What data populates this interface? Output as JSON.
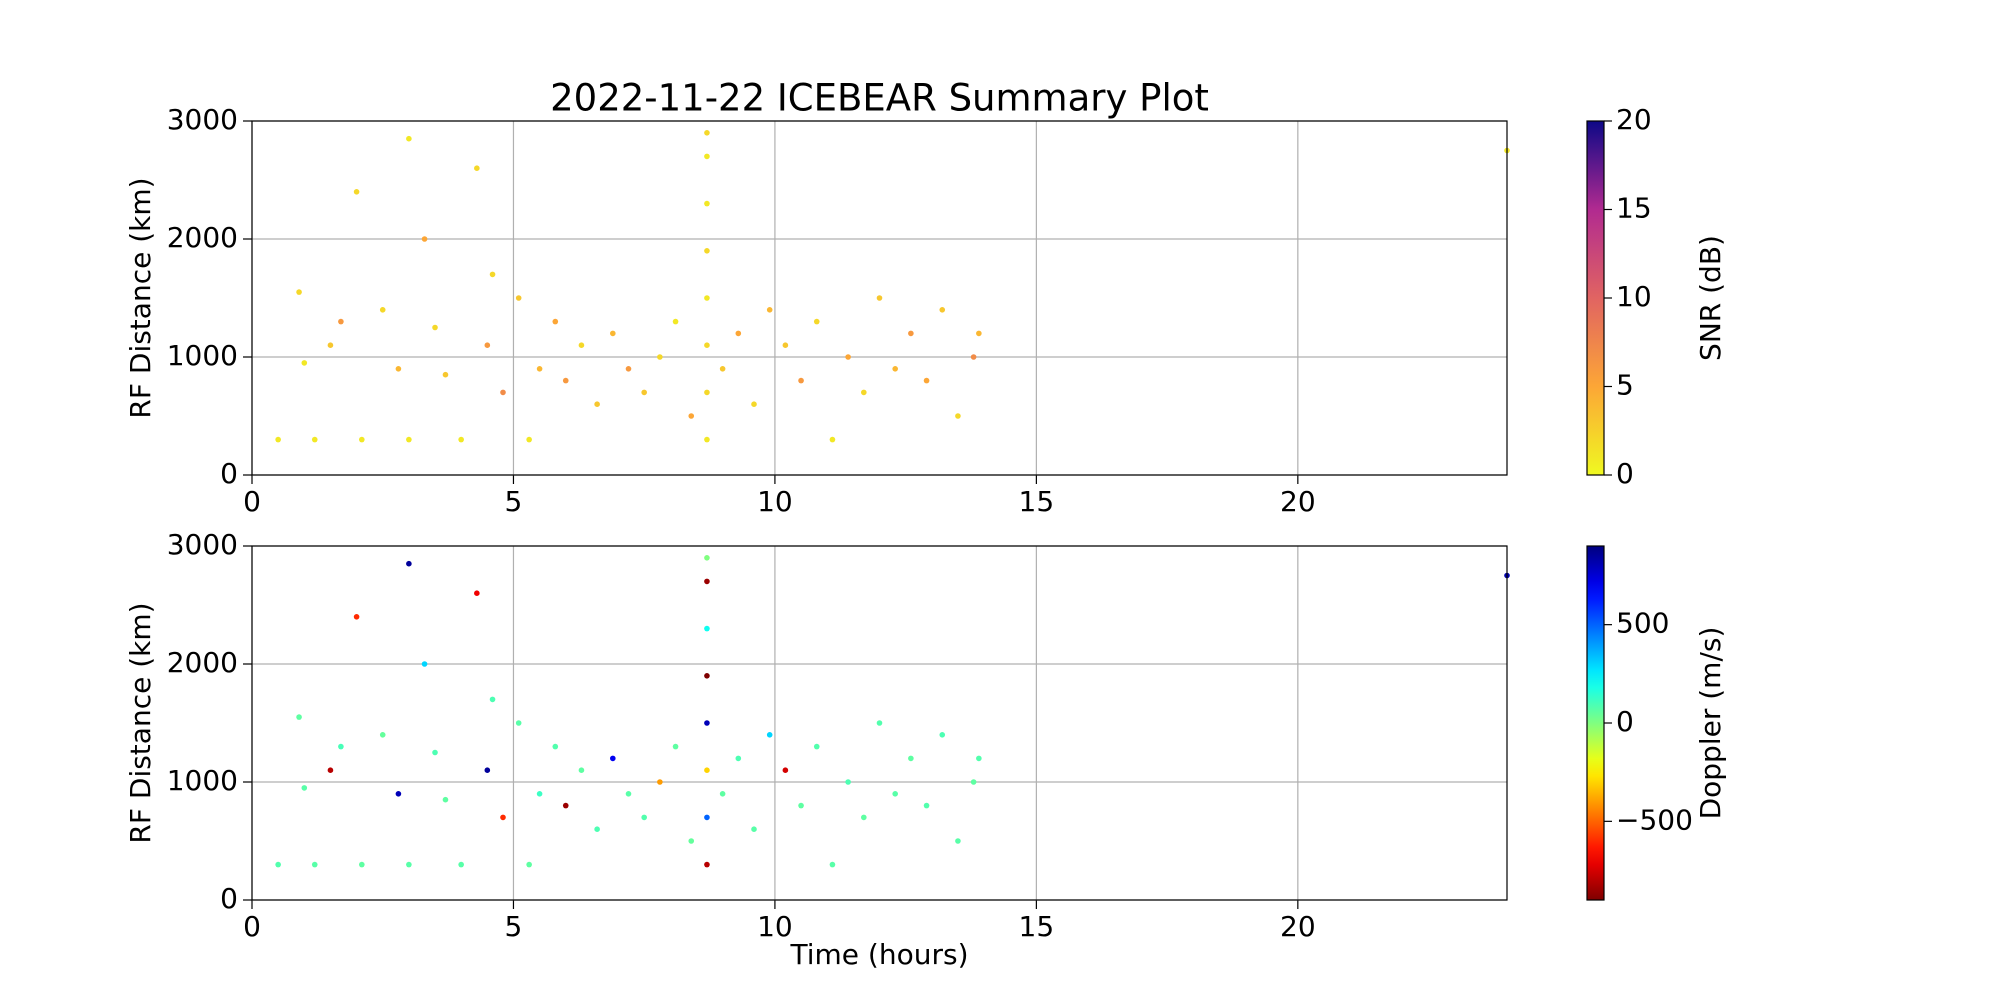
{
  "chart_data": [
    {
      "type": "scatter",
      "title": "2022-11-22 ICEBEAR Summary Plot",
      "ylabel": "RF Distance (km)",
      "xlim": [
        0,
        24
      ],
      "xticks": [
        0,
        5,
        10,
        15,
        20
      ],
      "ylim": [
        0,
        3000
      ],
      "yticks": [
        0,
        1000,
        2000,
        3000
      ],
      "grid": true,
      "x": [
        0.5,
        0.9,
        1.2,
        1.5,
        1.7,
        2.1,
        2.5,
        2.8,
        3.0,
        3.3,
        3.5,
        3.7,
        4.0,
        4.3,
        4.5,
        4.6,
        4.8,
        5.1,
        5.3,
        5.5,
        5.8,
        6.0,
        6.3,
        6.6,
        6.9,
        7.2,
        7.5,
        7.8,
        8.1,
        8.4,
        8.7,
        8.7,
        8.7,
        8.7,
        8.7,
        8.7,
        8.7,
        8.7,
        9.0,
        9.3,
        9.6,
        9.9,
        10.2,
        10.5,
        10.8,
        11.1,
        11.4,
        11.7,
        12.0,
        12.3,
        12.6,
        12.9,
        13.2,
        13.5,
        13.8,
        13.9,
        1.0,
        2.0,
        3.0,
        24.0
      ],
      "y": [
        300,
        1550,
        300,
        1100,
        1300,
        300,
        1400,
        900,
        300,
        2000,
        1250,
        850,
        300,
        2600,
        1100,
        1700,
        700,
        1500,
        300,
        900,
        1300,
        800,
        1100,
        600,
        1200,
        900,
        700,
        1000,
        1300,
        500,
        300,
        700,
        1100,
        1500,
        1900,
        2300,
        2700,
        2900,
        900,
        1200,
        600,
        1400,
        1100,
        800,
        1300,
        300,
        1000,
        700,
        1500,
        900,
        1200,
        800,
        1400,
        500,
        1000,
        1200,
        950,
        2400,
        2850,
        2750
      ],
      "c": [
        1,
        2,
        1,
        3,
        6,
        1,
        2,
        4,
        1,
        5,
        2,
        3,
        1,
        2,
        6,
        2,
        7,
        3,
        1,
        4,
        5,
        6,
        2,
        3,
        4,
        6,
        3,
        2,
        1,
        5,
        1,
        2,
        2,
        1,
        2,
        1,
        1,
        2,
        3,
        5,
        2,
        4,
        3,
        6,
        2,
        1,
        5,
        2,
        3,
        4,
        6,
        5,
        3,
        2,
        7,
        4,
        1,
        2,
        1,
        1
      ],
      "colorbar": {
        "label": "SNR (dB)",
        "colormap": "plasma_r",
        "clim": [
          0,
          20
        ],
        "ticks": [
          0,
          5,
          10,
          15,
          20
        ]
      }
    },
    {
      "type": "scatter",
      "ylabel": "RF Distance (km)",
      "xlabel": "Time (hours)",
      "xlim": [
        0,
        24
      ],
      "xticks": [
        0,
        5,
        10,
        15,
        20
      ],
      "ylim": [
        0,
        3000
      ],
      "yticks": [
        0,
        1000,
        2000,
        3000
      ],
      "grid": true,
      "x": [
        0.5,
        0.9,
        1.2,
        1.5,
        1.7,
        2.1,
        2.5,
        2.8,
        3.0,
        3.3,
        3.5,
        3.7,
        4.0,
        4.3,
        4.5,
        4.6,
        4.8,
        5.1,
        5.3,
        5.5,
        5.8,
        6.0,
        6.3,
        6.6,
        6.9,
        7.2,
        7.5,
        7.8,
        8.1,
        8.4,
        8.7,
        8.7,
        8.7,
        8.7,
        8.7,
        8.7,
        8.7,
        8.7,
        9.0,
        9.3,
        9.6,
        9.9,
        10.2,
        10.5,
        10.8,
        11.1,
        11.4,
        11.7,
        12.0,
        12.3,
        12.6,
        12.9,
        13.2,
        13.5,
        13.8,
        13.9,
        1.0,
        2.0,
        3.0,
        24.0
      ],
      "y": [
        300,
        1550,
        300,
        1100,
        1300,
        300,
        1400,
        900,
        300,
        2000,
        1250,
        850,
        300,
        2600,
        1100,
        1700,
        700,
        1500,
        300,
        900,
        1300,
        800,
        1100,
        600,
        1200,
        900,
        700,
        1000,
        1300,
        500,
        300,
        700,
        1100,
        1500,
        1900,
        2300,
        2700,
        2900,
        900,
        1200,
        600,
        1400,
        1100,
        800,
        1300,
        300,
        1000,
        700,
        1500,
        900,
        1200,
        800,
        1400,
        500,
        1000,
        1200,
        950,
        2400,
        2850,
        2750
      ],
      "c": [
        80,
        60,
        70,
        -800,
        100,
        60,
        50,
        800,
        70,
        300,
        90,
        60,
        70,
        -700,
        850,
        90,
        -600,
        70,
        60,
        120,
        80,
        -850,
        60,
        90,
        700,
        70,
        80,
        -400,
        60,
        50,
        -800,
        500,
        -300,
        800,
        -900,
        200,
        -850,
        0,
        60,
        90,
        70,
        300,
        -750,
        60,
        80,
        70,
        90,
        60,
        80,
        70,
        60,
        80,
        90,
        70,
        60,
        80,
        70,
        -600,
        850,
        820
      ],
      "colorbar": {
        "label": "Doppler (m/s)",
        "colormap": "jet_r",
        "clim": [
          -900,
          900
        ],
        "ticks": [
          {
            "value": -500,
            "label": "−500"
          },
          0,
          500
        ]
      }
    }
  ]
}
